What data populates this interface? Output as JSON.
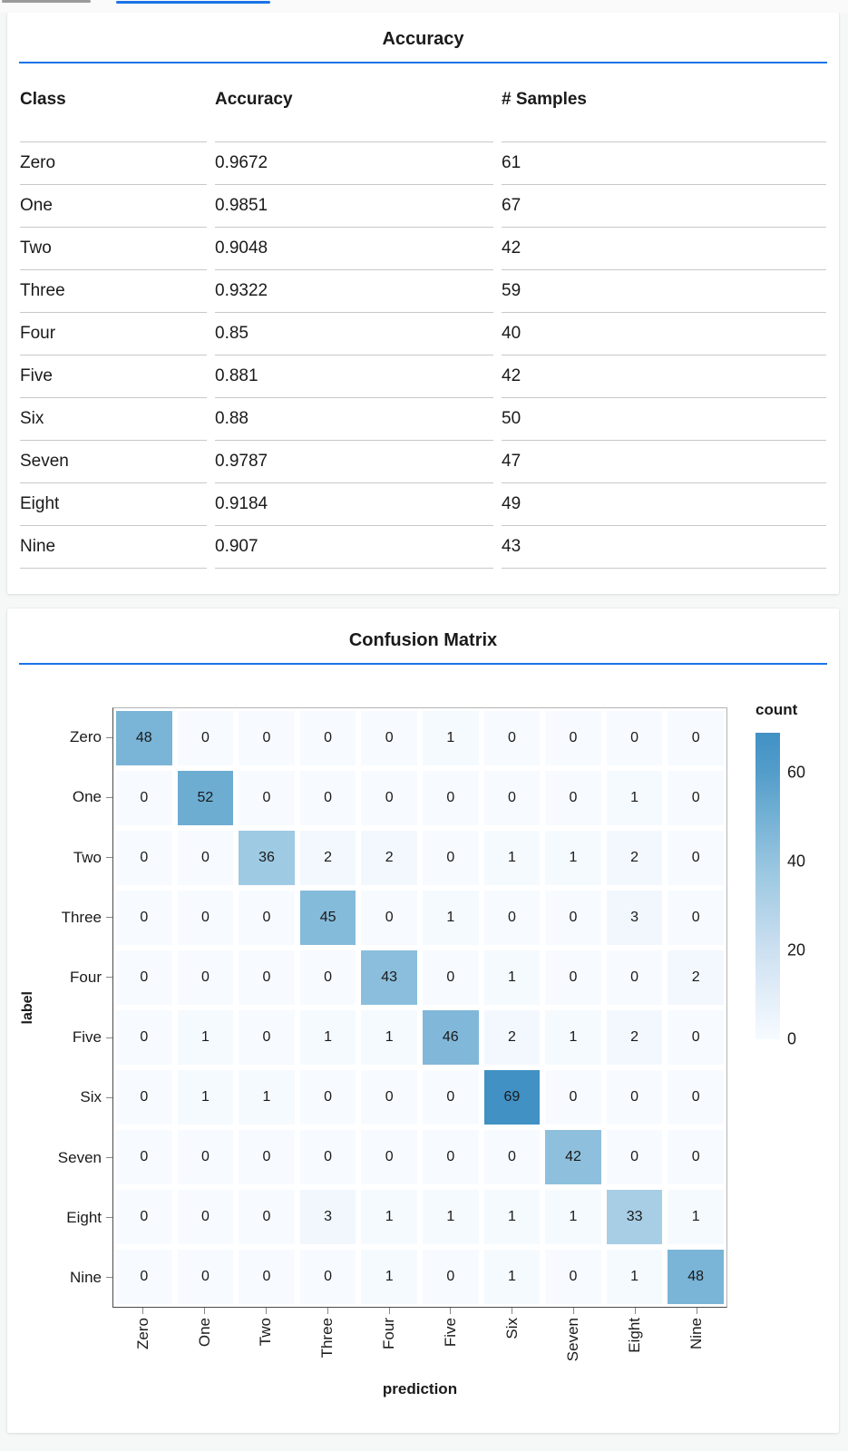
{
  "tabs": {
    "inactive_indicator": "scrollbar",
    "active_indicator": "selected-tab"
  },
  "colors": {
    "accent_blue": "#1a73e8",
    "tab_gray": "#9a9a9a",
    "heatmap_min": "#f7fbff",
    "heatmap_max": "#4191c5"
  },
  "chart_data": [
    {
      "type": "table",
      "title": "Accuracy",
      "columns": [
        "Class",
        "Accuracy",
        "# Samples"
      ],
      "rows": [
        [
          "Zero",
          "0.9672",
          "61"
        ],
        [
          "One",
          "0.9851",
          "67"
        ],
        [
          "Two",
          "0.9048",
          "42"
        ],
        [
          "Three",
          "0.9322",
          "59"
        ],
        [
          "Four",
          "0.85",
          "40"
        ],
        [
          "Five",
          "0.881",
          "42"
        ],
        [
          "Six",
          "0.88",
          "50"
        ],
        [
          "Seven",
          "0.9787",
          "47"
        ],
        [
          "Eight",
          "0.9184",
          "49"
        ],
        [
          "Nine",
          "0.907",
          "43"
        ]
      ]
    },
    {
      "type": "heatmap",
      "title": "Confusion Matrix",
      "xlabel": "prediction",
      "ylabel": "label",
      "x_categories": [
        "Zero",
        "One",
        "Two",
        "Three",
        "Four",
        "Five",
        "Six",
        "Seven",
        "Eight",
        "Nine"
      ],
      "y_categories": [
        "Zero",
        "One",
        "Two",
        "Three",
        "Four",
        "Five",
        "Six",
        "Seven",
        "Eight",
        "Nine"
      ],
      "matrix": [
        [
          48,
          0,
          0,
          0,
          0,
          1,
          0,
          0,
          0,
          0
        ],
        [
          0,
          52,
          0,
          0,
          0,
          0,
          0,
          0,
          1,
          0
        ],
        [
          0,
          0,
          36,
          2,
          2,
          0,
          1,
          1,
          2,
          0
        ],
        [
          0,
          0,
          0,
          45,
          0,
          1,
          0,
          0,
          3,
          0
        ],
        [
          0,
          0,
          0,
          0,
          43,
          0,
          1,
          0,
          0,
          2
        ],
        [
          0,
          1,
          0,
          1,
          1,
          46,
          2,
          1,
          2,
          0
        ],
        [
          0,
          1,
          1,
          0,
          0,
          0,
          69,
          0,
          0,
          0
        ],
        [
          0,
          0,
          0,
          0,
          0,
          0,
          0,
          42,
          0,
          0
        ],
        [
          0,
          0,
          0,
          3,
          1,
          1,
          1,
          1,
          33,
          1
        ],
        [
          0,
          0,
          0,
          0,
          1,
          0,
          1,
          0,
          1,
          48
        ]
      ],
      "legend": {
        "title": "count",
        "ticks": [
          60,
          40,
          20,
          0
        ],
        "domain": [
          0,
          69
        ]
      },
      "color_scale": {
        "stops": [
          [
            0,
            "#f7fbff"
          ],
          [
            20,
            "#cde0f1"
          ],
          [
            40,
            "#94c4df"
          ],
          [
            60,
            "#539dca"
          ],
          [
            69,
            "#4191c5"
          ]
        ]
      }
    }
  ]
}
